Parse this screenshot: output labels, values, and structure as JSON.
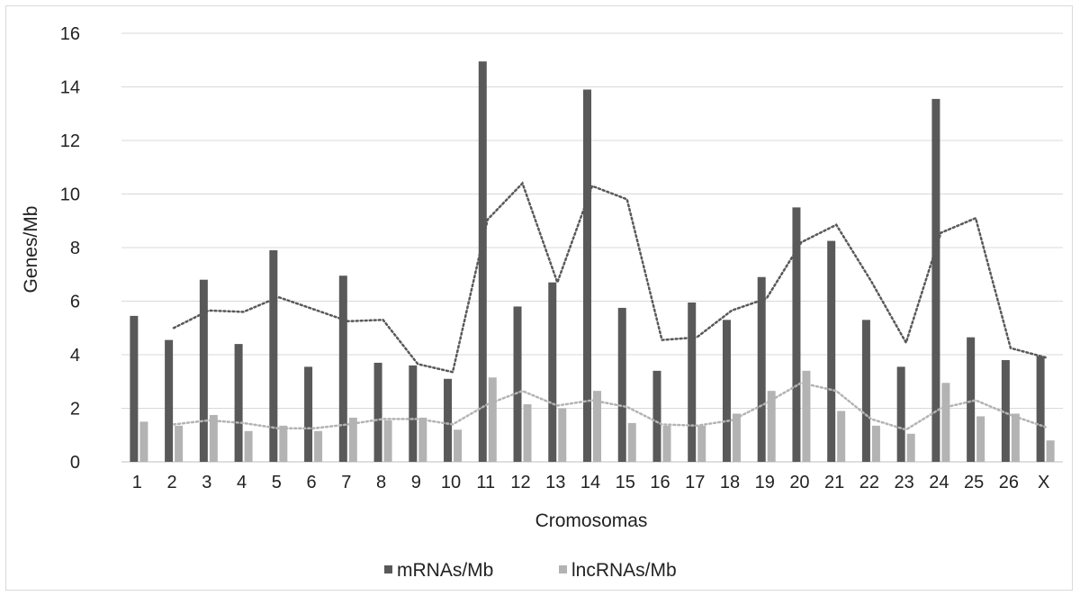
{
  "chart_data": {
    "type": "bar",
    "title": "",
    "xlabel": "Cromosomas",
    "ylabel": "Genes/Mb",
    "ylim": [
      0,
      16
    ],
    "yticks": [
      0,
      2,
      4,
      6,
      8,
      10,
      12,
      14,
      16
    ],
    "grid": "horizontal",
    "legend_position": "bottom",
    "categories": [
      "1",
      "2",
      "3",
      "4",
      "5",
      "6",
      "7",
      "8",
      "9",
      "10",
      "11",
      "12",
      "13",
      "14",
      "15",
      "16",
      "17",
      "18",
      "19",
      "20",
      "21",
      "22",
      "23",
      "24",
      "25",
      "26",
      "X"
    ],
    "series": [
      {
        "name": "mRNAs/Mb",
        "color": "#595959",
        "values": [
          5.45,
          4.55,
          6.8,
          4.4,
          7.9,
          3.55,
          6.95,
          3.7,
          3.6,
          3.1,
          14.95,
          5.8,
          6.7,
          13.9,
          5.75,
          3.4,
          5.95,
          5.3,
          6.9,
          9.5,
          8.25,
          5.3,
          3.55,
          13.55,
          4.65,
          3.8,
          3.95
        ]
      },
      {
        "name": "lncRNAs/Mb",
        "color": "#b3b3b3",
        "values": [
          1.5,
          1.35,
          1.75,
          1.15,
          1.35,
          1.15,
          1.65,
          1.55,
          1.65,
          1.2,
          3.15,
          2.15,
          2.0,
          2.65,
          1.45,
          1.35,
          1.35,
          1.8,
          2.65,
          3.4,
          1.9,
          1.35,
          1.05,
          2.95,
          1.7,
          1.8,
          0.8
        ]
      }
    ],
    "trendlines": [
      {
        "of": "mRNAs/Mb",
        "style": "dotted",
        "color": "#595959",
        "values": [
          null,
          5.0,
          5.65,
          5.6,
          6.15,
          5.7,
          5.25,
          5.3,
          3.65,
          3.35,
          9.05,
          10.4,
          6.7,
          10.3,
          9.8,
          4.55,
          4.65,
          5.65,
          6.1,
          8.2,
          8.85,
          6.75,
          4.45,
          8.55,
          9.1,
          4.25,
          3.9
        ]
      },
      {
        "of": "lncRNAs/Mb",
        "style": "dotted",
        "color": "#b3b3b3",
        "values": [
          null,
          1.4,
          1.55,
          1.45,
          1.25,
          1.25,
          1.4,
          1.6,
          1.6,
          1.4,
          2.15,
          2.65,
          2.1,
          2.3,
          2.05,
          1.4,
          1.35,
          1.55,
          2.2,
          2.95,
          2.65,
          1.6,
          1.2,
          2.0,
          2.3,
          1.75,
          1.3
        ]
      }
    ]
  }
}
